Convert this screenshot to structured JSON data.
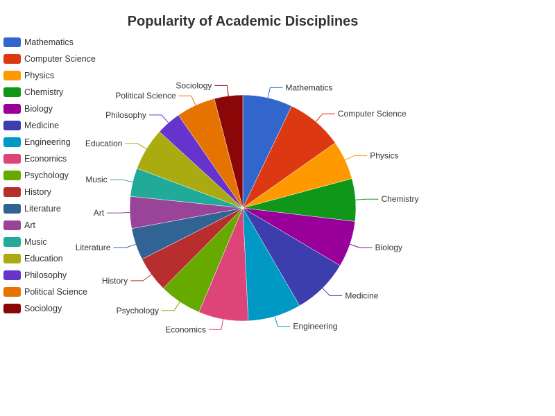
{
  "chart_data": {
    "type": "pie",
    "title": "Popularity of Academic Disciplines",
    "legend_position": "left",
    "slices": [
      {
        "name": "Mathematics",
        "value": 7.0,
        "color": "#3366cc"
      },
      {
        "name": "Computer Science",
        "value": 8.0,
        "color": "#dc3912"
      },
      {
        "name": "Physics",
        "value": 5.5,
        "color": "#ff9900"
      },
      {
        "name": "Chemistry",
        "value": 6.0,
        "color": "#109618"
      },
      {
        "name": "Biology",
        "value": 6.5,
        "color": "#990099"
      },
      {
        "name": "Medicine",
        "value": 8.0,
        "color": "#3b3eac"
      },
      {
        "name": "Engineering",
        "value": 7.5,
        "color": "#0099c6"
      },
      {
        "name": "Economics",
        "value": 7.0,
        "color": "#dd4477"
      },
      {
        "name": "Psychology",
        "value": 6.0,
        "color": "#66aa00"
      },
      {
        "name": "History",
        "value": 5.0,
        "color": "#b82e2e"
      },
      {
        "name": "Literature",
        "value": 4.5,
        "color": "#316395"
      },
      {
        "name": "Art",
        "value": 4.5,
        "color": "#994499"
      },
      {
        "name": "Music",
        "value": 4.0,
        "color": "#22aa99"
      },
      {
        "name": "Education",
        "value": 6.0,
        "color": "#aaaa11"
      },
      {
        "name": "Philosophy",
        "value": 3.5,
        "color": "#6633cc"
      },
      {
        "name": "Political Science",
        "value": 5.5,
        "color": "#e67300"
      },
      {
        "name": "Sociology",
        "value": 4.0,
        "color": "#8b0707"
      }
    ]
  }
}
